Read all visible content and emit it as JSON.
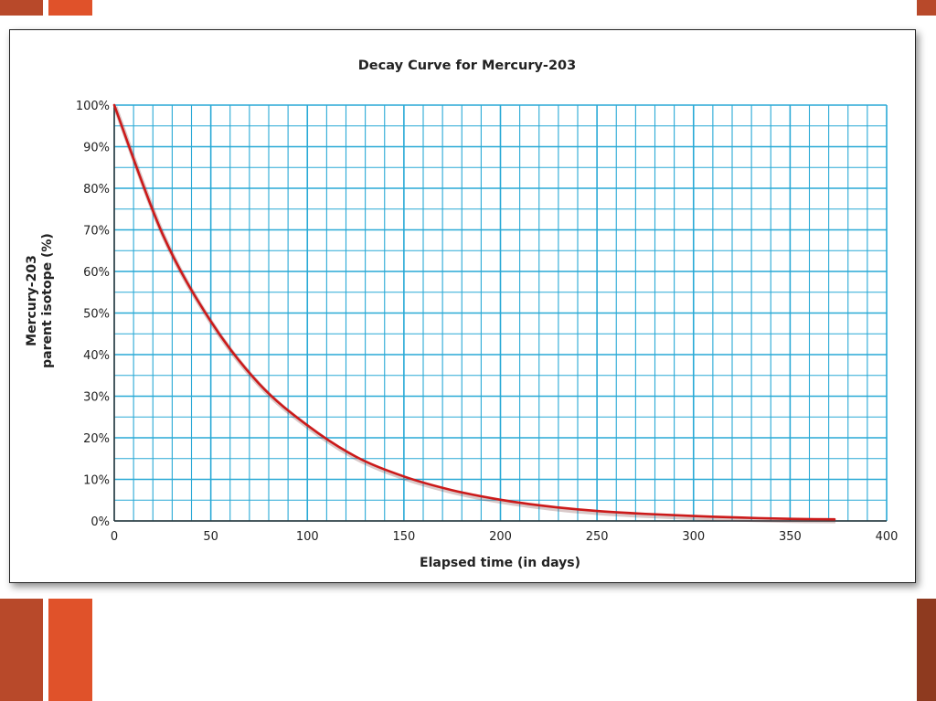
{
  "chart_data": {
    "type": "line",
    "title": "Decay Curve for Mercury-203",
    "xlabel": "Elapsed time (in days)",
    "ylabel_lines": [
      "Mercury-203",
      "parent isotope (%)"
    ],
    "xlim": [
      0,
      400
    ],
    "ylim": [
      0,
      100
    ],
    "x_ticks": [
      0,
      50,
      100,
      150,
      200,
      250,
      300,
      350,
      400
    ],
    "x_tick_labels": [
      "0",
      "50",
      "100",
      "150",
      "200",
      "250",
      "300",
      "350",
      "400"
    ],
    "y_ticks": [
      0,
      10,
      20,
      30,
      40,
      50,
      60,
      70,
      80,
      90,
      100
    ],
    "y_tick_labels": [
      "0%",
      "10%",
      "20%",
      "30%",
      "40%",
      "50%",
      "60%",
      "70%",
      "80%",
      "90%",
      "100%"
    ],
    "grid": true,
    "grid_minor_x_step": 10,
    "grid_minor_y_step": 5,
    "grid_color": "#29a9d6",
    "line_color": "#cc1a1a",
    "series": [
      {
        "x": [
          0,
          25,
          50,
          75,
          100,
          125,
          150,
          175,
          200,
          225,
          250,
          275,
          300,
          325,
          350,
          373
        ],
        "y": [
          100,
          69,
          48,
          33,
          23,
          15.5,
          10.7,
          7.4,
          5.1,
          3.5,
          2.4,
          1.7,
          1.2,
          0.8,
          0.5,
          0.4
        ]
      }
    ]
  }
}
